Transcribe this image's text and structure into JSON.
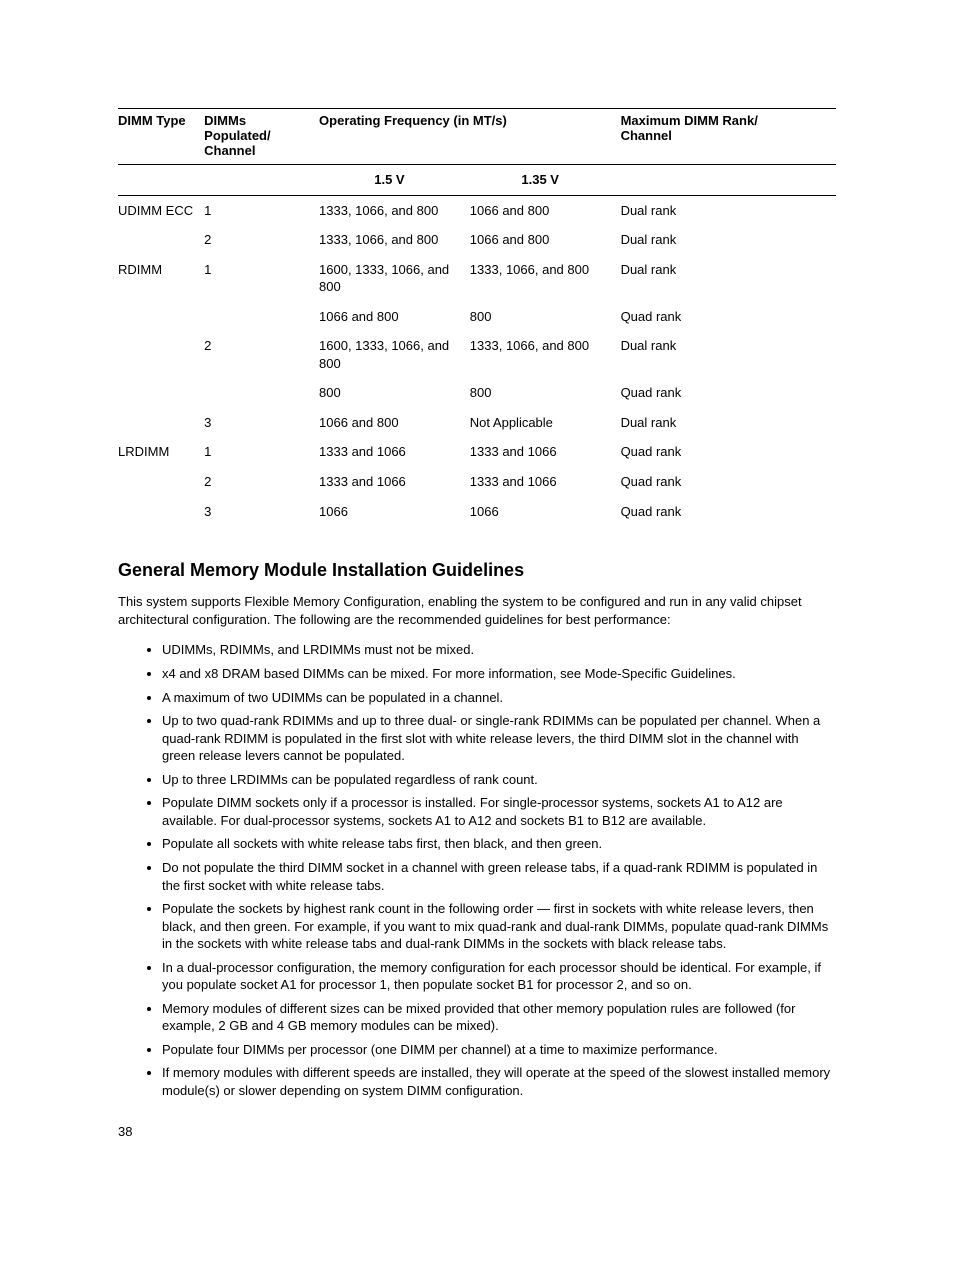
{
  "table": {
    "headers": {
      "dimm_type": "DIMM Type",
      "dimms_populated": "DIMMs Populated/\nChannel",
      "operating_freq": "Operating Frequency (in MT/s)",
      "max_rank": "Maximum DIMM Rank/\nChannel",
      "v15": "1.5 V",
      "v135": "1.35 V"
    },
    "rows": [
      {
        "type": "UDIMM ECC",
        "dimms": "1",
        "v15": "1333, 1066, and 800",
        "v135": "1066 and 800",
        "rank": "Dual rank"
      },
      {
        "type": "",
        "dimms": "2",
        "v15": "1333, 1066, and 800",
        "v135": "1066 and 800",
        "rank": "Dual rank"
      },
      {
        "type": "RDIMM",
        "dimms": "1",
        "v15": "1600, 1333, 1066, and 800",
        "v135": "1333, 1066, and 800",
        "rank": "Dual rank"
      },
      {
        "type": "",
        "dimms": "",
        "v15": "1066 and 800",
        "v135": "800",
        "rank": "Quad rank"
      },
      {
        "type": "",
        "dimms": "2",
        "v15": "1600, 1333, 1066, and 800",
        "v135": "1333, 1066, and 800",
        "rank": "Dual rank"
      },
      {
        "type": "",
        "dimms": "",
        "v15": "800",
        "v135": "800",
        "rank": "Quad rank"
      },
      {
        "type": "",
        "dimms": "3",
        "v15": "1066 and 800",
        "v135": "Not Applicable",
        "rank": "Dual rank"
      },
      {
        "type": "LRDIMM",
        "dimms": "1",
        "v15": "1333 and 1066",
        "v135": "1333 and 1066",
        "rank": "Quad rank"
      },
      {
        "type": "",
        "dimms": "2",
        "v15": "1333 and 1066",
        "v135": "1333 and 1066",
        "rank": "Quad rank"
      },
      {
        "type": "",
        "dimms": "3",
        "v15": "1066",
        "v135": "1066",
        "rank": "Quad rank"
      }
    ]
  },
  "section": {
    "title": "General Memory Module Installation Guidelines",
    "intro": "This system supports Flexible Memory Configuration, enabling the system to be configured and run in any valid chipset architectural configuration. The following are the recommended guidelines for best performance:",
    "bullets": [
      "UDIMMs, RDIMMs, and LRDIMMs must not be mixed.",
      "x4 and x8 DRAM based DIMMs can be mixed. For more information, see Mode-Specific Guidelines.",
      "A maximum of two UDIMMs can be populated in a channel.",
      "Up to two quad-rank RDIMMs and up to three dual- or single-rank RDIMMs can be populated per channel. When a quad-rank RDIMM is populated in the first slot with white release levers, the third DIMM slot in the channel with green release levers cannot be populated.",
      "Up to three LRDIMMs can be populated regardless of rank count.",
      "Populate DIMM sockets only if a processor is installed. For single-processor systems, sockets A1 to A12 are available. For dual-processor systems, sockets A1 to A12 and sockets B1 to B12 are available.",
      "Populate all sockets with white release tabs first, then black, and then green.",
      "Do not populate the third DIMM socket in a channel with green release tabs, if a quad-rank RDIMM is populated in the first socket with white release tabs.",
      "Populate the sockets by highest rank count in the following order — first in sockets with white release levers, then black, and then green. For example, if you want to mix quad-rank and dual-rank DIMMs, populate quad-rank DIMMs in the sockets with white release tabs and dual-rank DIMMs in the sockets with black release tabs.",
      "In a dual-processor configuration, the memory configuration for each processor should be identical. For example, if you populate socket A1 for processor 1, then populate socket B1 for processor 2, and so on.",
      "Memory modules of different sizes can be mixed provided that other memory population rules are followed (for example, 2 GB and 4 GB memory modules can be mixed).",
      "Populate four DIMMs per processor (one DIMM per channel) at a time to maximize performance.",
      "If memory modules with different speeds are installed, they will operate at the speed of the slowest installed memory module(s) or slower depending on system DIMM configuration."
    ]
  },
  "page_number": "38"
}
